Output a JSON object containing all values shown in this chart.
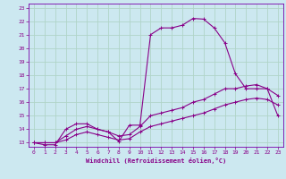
{
  "xlabel": "Windchill (Refroidissement éolien,°C)",
  "bg_color": "#cce8f0",
  "grid_color": "#b0d4c8",
  "line_color": "#880088",
  "spine_color": "#7700aa",
  "xlim": [
    -0.5,
    23.5
  ],
  "ylim": [
    12.7,
    23.3
  ],
  "xticks": [
    0,
    1,
    2,
    3,
    4,
    5,
    6,
    7,
    8,
    9,
    10,
    11,
    12,
    13,
    14,
    15,
    16,
    17,
    18,
    19,
    20,
    21,
    22,
    23
  ],
  "yticks": [
    13,
    14,
    15,
    16,
    17,
    18,
    19,
    20,
    21,
    22,
    23
  ],
  "line1_x": [
    0,
    1,
    2,
    3,
    4,
    5,
    6,
    7,
    8,
    9,
    10,
    11,
    12,
    13,
    14,
    15,
    16,
    17,
    18,
    19,
    20,
    21,
    22,
    23
  ],
  "line1_y": [
    13.0,
    12.85,
    12.85,
    14.0,
    14.4,
    14.4,
    14.0,
    13.8,
    13.1,
    14.3,
    14.3,
    21.0,
    21.5,
    21.5,
    21.7,
    22.2,
    22.15,
    21.5,
    20.4,
    18.1,
    17.0,
    17.0,
    17.0,
    15.0
  ],
  "line2_x": [
    0,
    1,
    2,
    3,
    4,
    5,
    6,
    7,
    8,
    9,
    10,
    11,
    12,
    13,
    14,
    15,
    16,
    17,
    18,
    19,
    20,
    21,
    22,
    23
  ],
  "line2_y": [
    13.0,
    13.0,
    13.0,
    13.5,
    14.0,
    14.2,
    14.0,
    13.8,
    13.5,
    13.6,
    14.2,
    15.0,
    15.2,
    15.4,
    15.6,
    16.0,
    16.2,
    16.6,
    17.0,
    17.0,
    17.2,
    17.3,
    17.0,
    16.5
  ],
  "line3_x": [
    0,
    1,
    2,
    3,
    4,
    5,
    6,
    7,
    8,
    9,
    10,
    11,
    12,
    13,
    14,
    15,
    16,
    17,
    18,
    19,
    20,
    21,
    22,
    23
  ],
  "line3_y": [
    13.0,
    13.0,
    13.0,
    13.2,
    13.6,
    13.8,
    13.6,
    13.4,
    13.2,
    13.3,
    13.8,
    14.2,
    14.4,
    14.6,
    14.8,
    15.0,
    15.2,
    15.5,
    15.8,
    16.0,
    16.2,
    16.3,
    16.2,
    15.8
  ]
}
